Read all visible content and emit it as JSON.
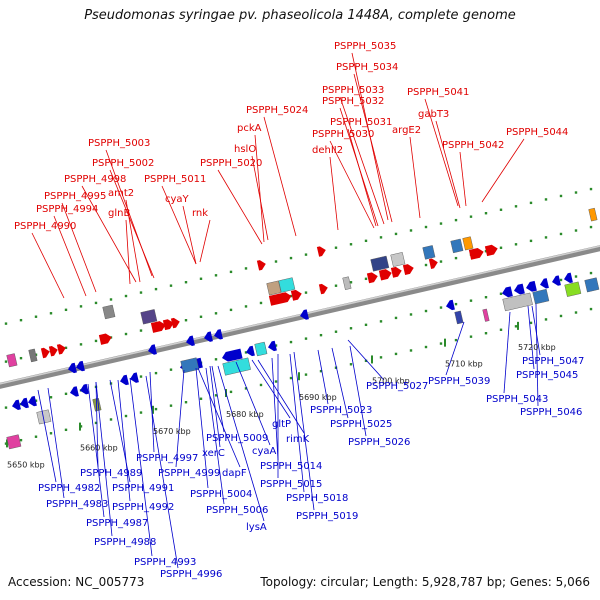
{
  "title": "Pseudomonas syringae pv. phaseolicola 1448A, complete genome",
  "footer": {
    "accession": "Accession: NC_005773",
    "summary": "Topology: circular; Length: 5,928,787 bp; Genes: 5,066"
  },
  "colors": {
    "forward": "#e00000",
    "reverse": "#0000cc",
    "backbone": "#8a8a8a",
    "tick": "#2a8a2a"
  },
  "ticks": [
    "5650 kbp",
    "5660 kbp",
    "5670 kbp",
    "5680 kbp",
    "5690 kbp",
    "5700 kbp",
    "5710 kbp",
    "5720 kbp"
  ],
  "forward_labels": [
    "PSPPH_5035",
    "PSPPH_5034",
    "PSPPH_5033",
    "PSPPH_5032",
    "PSPPH_5041",
    "PSPPH_5024",
    "gabT3",
    "pckA",
    "PSPPH_5031",
    "PSPPH_5030",
    "argE2",
    "PSPPH_5044",
    "PSPPH_5003",
    "hslO",
    "dehII2",
    "PSPPH_5042",
    "PSPPH_5002",
    "PSPPH_5020",
    "PSPPH_4998",
    "PSPPH_5011",
    "amt2",
    "PSPPH_4995",
    "cyaY",
    "PSPPH_4994",
    "glnB",
    "rnk",
    "PSPPH_4990"
  ],
  "reverse_labels": [
    "PSPPH_5039",
    "PSPPH_5047",
    "PSPPH_5027",
    "PSPPH_5045",
    "PSPPH_5043",
    "PSPPH_5023",
    "PSPPH_5046",
    "PSPPH_5025",
    "PSPPH_5009",
    "PSPPH_5026",
    "xerC",
    "gltP",
    "PSPPH_4997",
    "rimK",
    "cyaA",
    "PSPPH_4989",
    "PSPPH_4999",
    "dapF",
    "PSPPH_5014",
    "PSPPH_4982",
    "PSPPH_4991",
    "PSPPH_5015",
    "PSPPH_4983",
    "PSPPH_5004",
    "PSPPH_5018",
    "PSPPH_4992",
    "PSPPH_5006",
    "PSPPH_5019",
    "PSPPH_4987",
    "lysA",
    "PSPPH_4988",
    "PSPPH_4993",
    "PSPPH_4996"
  ]
}
